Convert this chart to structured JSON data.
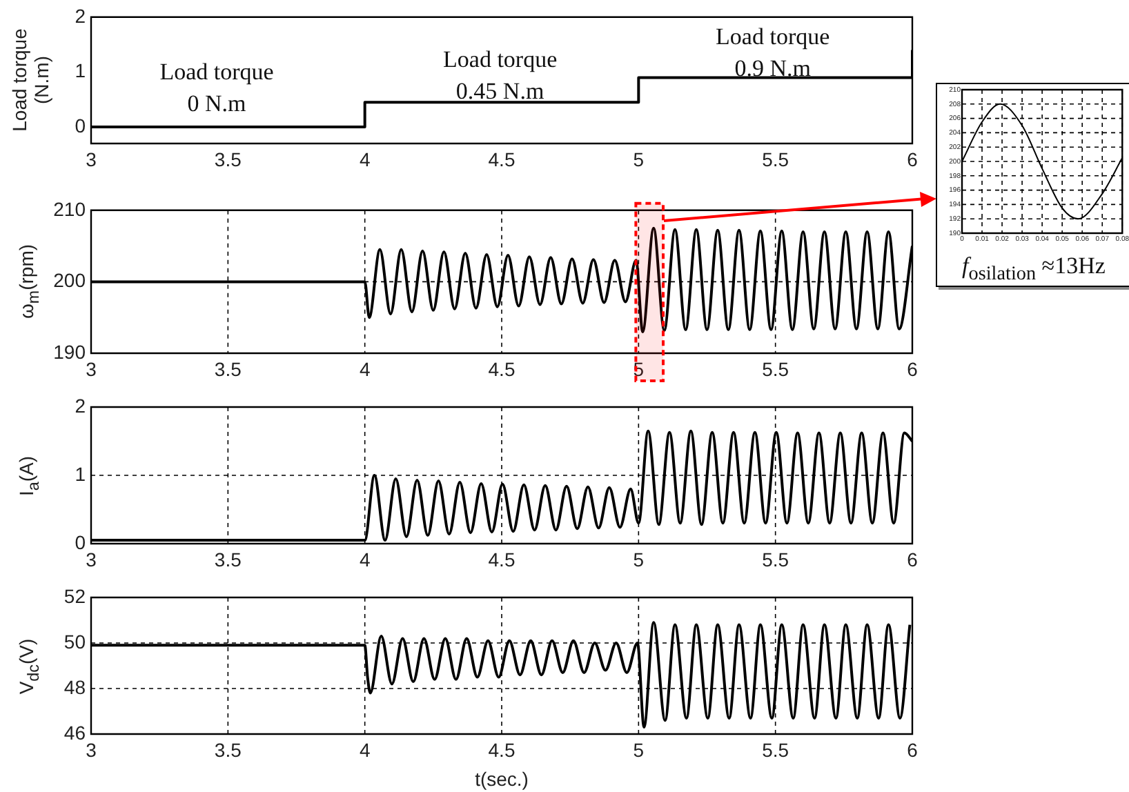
{
  "chart_data": [
    {
      "type": "line",
      "ylabel": "Load torque\n(N.m)",
      "color": "#000000",
      "x": [
        3,
        4,
        4,
        5,
        5,
        6,
        6
      ],
      "values": [
        0,
        0,
        0.45,
        0.45,
        0.9,
        0.9,
        1.4
      ],
      "xlim": [
        3,
        6
      ],
      "xticks": [
        3,
        3.5,
        4,
        4.5,
        5,
        5.5,
        6
      ],
      "ylim": [
        -0.3,
        2
      ],
      "yticks": [
        0,
        1,
        2
      ],
      "grid": false,
      "annotations": [
        "Load torque\n0 N.m",
        "Load torque\n0.45 N.m",
        "Load torque\n0.9 N.m"
      ]
    },
    {
      "type": "line",
      "ylabel": "ω$_{m}$(rpm)",
      "color": "#000000",
      "x": [
        3,
        4,
        4.016,
        4.055,
        4.094,
        4.133,
        4.172,
        4.211,
        4.25,
        4.289,
        4.328,
        4.367,
        4.406,
        4.445,
        4.484,
        4.523,
        4.562,
        4.601,
        4.64,
        4.679,
        4.718,
        4.757,
        4.796,
        4.835,
        4.874,
        4.913,
        4.952,
        4.991,
        5.015,
        5.055,
        5.094,
        5.133,
        5.172,
        5.211,
        5.25,
        5.289,
        5.328,
        5.367,
        5.406,
        5.445,
        5.484,
        5.523,
        5.562,
        5.601,
        5.64,
        5.679,
        5.718,
        5.757,
        5.796,
        5.835,
        5.874,
        5.913,
        5.952,
        6
      ],
      "values": [
        200,
        200,
        195,
        204.5,
        195.5,
        204.5,
        195.8,
        204.3,
        196,
        204.2,
        196.2,
        204,
        196.3,
        203.8,
        196.5,
        203.7,
        196.6,
        203.5,
        196.8,
        203.4,
        196.9,
        203.2,
        197,
        203.1,
        197.1,
        203,
        197.2,
        203,
        193,
        207.5,
        193.2,
        207.3,
        193.3,
        207.3,
        193.3,
        207.2,
        193.3,
        207.2,
        193.3,
        207.1,
        193.3,
        207.1,
        193.3,
        207,
        193.4,
        207,
        193.4,
        207,
        193.4,
        207,
        193.4,
        207,
        193.4,
        205
      ],
      "xlim": [
        3,
        6
      ],
      "xticks": [
        3,
        3.5,
        4,
        4.5,
        5,
        5.5,
        6
      ],
      "ylim": [
        190,
        210
      ],
      "yticks": [
        190,
        200,
        210
      ],
      "grid": true,
      "bands": [
        {
          "axis": "x",
          "from": 4.99,
          "to": 5.09,
          "color": "#ff0000"
        }
      ]
    },
    {
      "type": "line",
      "ylabel": "I$_{a}$(A)",
      "color": "#000000",
      "x": [
        3,
        4,
        4.035,
        4.074,
        4.113,
        4.152,
        4.191,
        4.23,
        4.269,
        4.308,
        4.347,
        4.386,
        4.425,
        4.464,
        4.503,
        4.542,
        4.581,
        4.62,
        4.659,
        4.698,
        4.737,
        4.776,
        4.815,
        4.854,
        4.893,
        4.932,
        4.971,
        5,
        5.035,
        5.074,
        5.113,
        5.152,
        5.191,
        5.23,
        5.269,
        5.308,
        5.347,
        5.386,
        5.425,
        5.464,
        5.503,
        5.542,
        5.581,
        5.62,
        5.659,
        5.698,
        5.737,
        5.776,
        5.815,
        5.854,
        5.893,
        5.932,
        5.971,
        6
      ],
      "values": [
        0.05,
        0.05,
        1,
        0.05,
        0.95,
        0.1,
        0.93,
        0.12,
        0.92,
        0.14,
        0.9,
        0.16,
        0.88,
        0.17,
        0.87,
        0.18,
        0.86,
        0.2,
        0.85,
        0.2,
        0.84,
        0.22,
        0.83,
        0.23,
        0.82,
        0.24,
        0.8,
        0.3,
        1.65,
        0.28,
        1.63,
        0.3,
        1.65,
        0.28,
        1.63,
        0.3,
        1.63,
        0.3,
        1.63,
        0.3,
        1.63,
        0.3,
        1.62,
        0.3,
        1.62,
        0.3,
        1.62,
        0.3,
        1.62,
        0.3,
        1.62,
        0.3,
        1.62,
        1.5
      ],
      "xlim": [
        3,
        6
      ],
      "xticks": [
        3,
        3.5,
        4,
        4.5,
        5,
        5.5,
        6
      ],
      "ylim": [
        0,
        2
      ],
      "yticks": [
        0,
        1,
        2
      ],
      "grid": true
    },
    {
      "type": "line",
      "ylabel": "V$_{dc}$(V)",
      "xlabel": "t(sec.)",
      "color": "#000000",
      "x": [
        3,
        4,
        4.01,
        4.02,
        4.06,
        4.099,
        4.138,
        4.177,
        4.216,
        4.255,
        4.294,
        4.333,
        4.372,
        4.411,
        4.45,
        4.489,
        4.528,
        4.567,
        4.606,
        4.645,
        4.684,
        4.723,
        4.762,
        4.801,
        4.84,
        4.879,
        4.918,
        4.957,
        4.996,
        5.02,
        5.055,
        5.097,
        5.133,
        5.175,
        5.211,
        5.253,
        5.289,
        5.331,
        5.367,
        5.409,
        5.445,
        5.487,
        5.523,
        5.565,
        5.601,
        5.643,
        5.679,
        5.721,
        5.757,
        5.799,
        5.835,
        5.877,
        5.913,
        5.955,
        5.991
      ],
      "values": [
        49.9,
        49.9,
        48.5,
        47.8,
        50.3,
        48.2,
        50.2,
        48.3,
        50.2,
        48.4,
        50.2,
        48.4,
        50.2,
        48.5,
        50.1,
        48.5,
        50.1,
        48.6,
        50.1,
        48.6,
        50.1,
        48.7,
        50.1,
        48.7,
        50,
        48.8,
        50,
        48.7,
        50,
        46.3,
        50.9,
        46.6,
        50.8,
        46.7,
        50.8,
        46.7,
        50.8,
        46.7,
        50.8,
        46.7,
        50.8,
        46.7,
        50.8,
        46.7,
        50.8,
        46.7,
        50.8,
        46.7,
        50.8,
        46.7,
        50.8,
        46.7,
        50.8,
        46.7,
        50.8
      ],
      "xlim": [
        3,
        6
      ],
      "xticks": [
        3,
        3.5,
        4,
        4.5,
        5,
        5.5,
        6
      ],
      "ylim": [
        46,
        52
      ],
      "yticks": [
        46,
        48,
        50,
        52
      ],
      "grid": true
    },
    {
      "type": "line",
      "xlabel": "f$_{osilation}$ ≈13Hz",
      "color": "#000000",
      "x": [
        0,
        0.01,
        0.019,
        0.03,
        0.04,
        0.05,
        0.058,
        0.07,
        0.08
      ],
      "values": [
        200,
        205.5,
        208,
        205,
        199,
        193.5,
        192,
        195.5,
        200.5
      ],
      "xlim": [
        0,
        0.08
      ],
      "xticks": [
        0,
        0.01,
        0.02,
        0.03,
        0.04,
        0.05,
        0.06,
        0.07,
        0.08
      ],
      "ylim": [
        190,
        210
      ],
      "yticks": [
        190,
        192,
        194,
        196,
        198,
        200,
        202,
        204,
        206,
        208,
        210
      ],
      "grid": true
    }
  ]
}
